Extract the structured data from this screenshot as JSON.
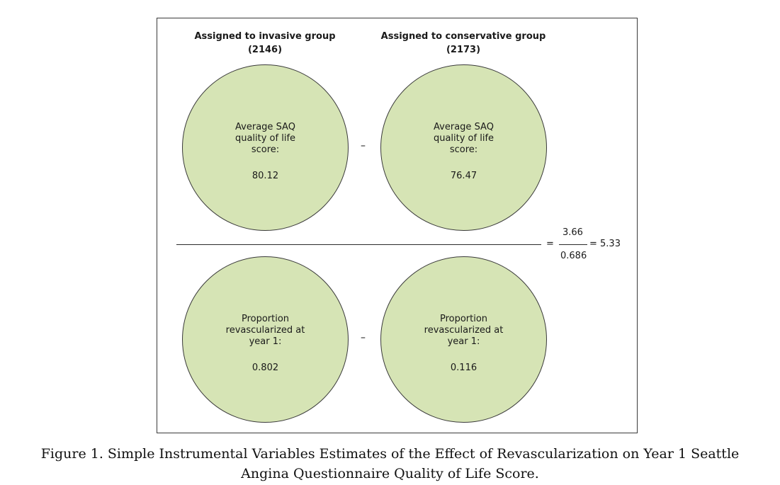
{
  "invasive": {
    "heading": "Assigned to invasive group",
    "count": "(2146)",
    "top_label": [
      "Average SAQ",
      "quality of life",
      "score:"
    ],
    "top_value": "80.12",
    "bottom_label": [
      "Proportion",
      "revascularized at",
      "year 1:"
    ],
    "bottom_value": "0.802"
  },
  "conservative": {
    "heading": "Assigned to conservative group",
    "count": "(2173)",
    "top_label": [
      "Average SAQ",
      "quality of life",
      "score:"
    ],
    "top_value": "76.47",
    "bottom_label": [
      "Proportion",
      "revascularized at",
      "year 1:"
    ],
    "bottom_value": "0.116"
  },
  "operators": {
    "minus": "–",
    "equals": "="
  },
  "result": {
    "numerator": "3.66",
    "denominator": "0.686",
    "final": "= 5.33"
  },
  "caption": {
    "line1": "Figure 1.  Simple Instrumental Variables Estimates of the Effect of Revascularization on Year 1 Seattle",
    "line2": "Angina Questionnaire Quality of Life Score."
  }
}
